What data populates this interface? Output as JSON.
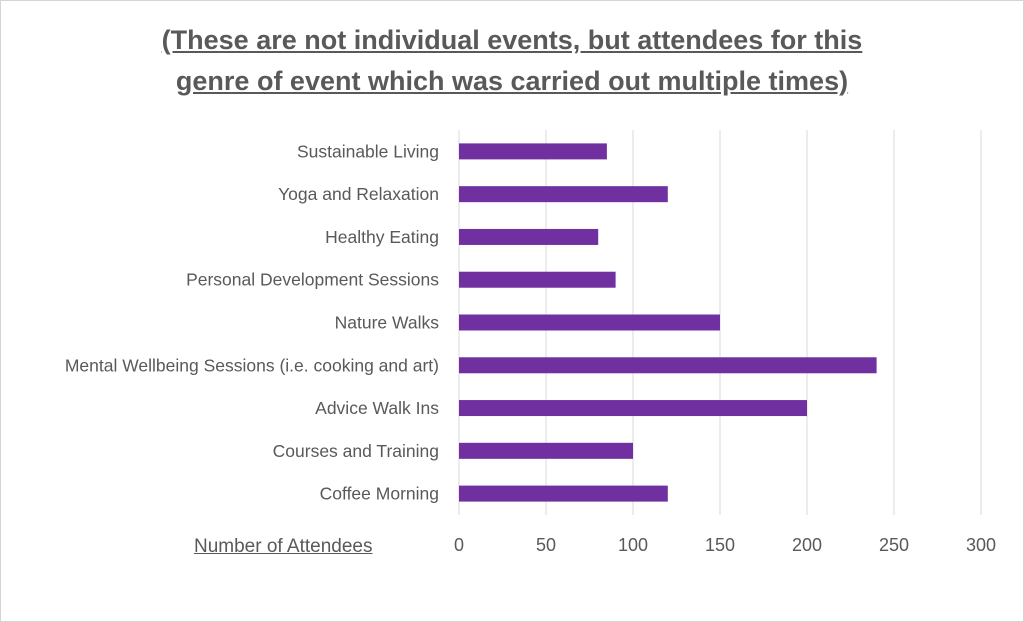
{
  "chart_data": {
    "type": "bar",
    "orientation": "horizontal",
    "title_lines": [
      "(These are not individual events, but attendees for this",
      "genre of event which was carried out multiple times)"
    ],
    "categories": [
      "Sustainable Living",
      "Yoga and Relaxation",
      "Healthy Eating ",
      "Personal Development Sessions",
      "Nature Walks",
      "Mental Wellbeing Sessions (i.e. cooking and art) ",
      "Advice Walk Ins",
      "Courses and Training",
      "Coffee Morning"
    ],
    "values": [
      85,
      120,
      80,
      90,
      150,
      240,
      200,
      100,
      120
    ],
    "xlabel": "Number of Attendees",
    "xlim": [
      0,
      300
    ],
    "xticks": [
      "0",
      "50",
      "100",
      "150",
      "200",
      "250",
      "300"
    ],
    "grid": "vertical",
    "legend": "none",
    "colors": {
      "bar": "#7030A0",
      "grid": "#d9d9d9",
      "text": "#595959"
    }
  }
}
